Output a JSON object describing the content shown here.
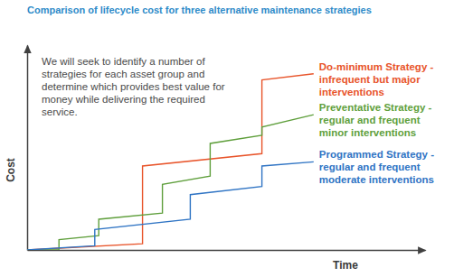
{
  "chart_data": {
    "type": "line",
    "title": "Comparison of lifecycle cost for three alternative maintenance strategies",
    "x_label": "Time",
    "y_label": "Cost",
    "annotation": "We will seek to identify a number of strategies for each asset group and determine which provides best value for money while delivering the required service.",
    "xlim": [
      0,
      100
    ],
    "ylim": [
      0,
      100
    ],
    "tick_labels": false,
    "grid": false,
    "series": [
      {
        "name": "Do-minimum Strategy - infrequent but major interventions",
        "color": "#e8542a",
        "x": [
          0,
          29,
          29,
          59,
          59,
          72
        ],
        "values": [
          0,
          3,
          41,
          47,
          83,
          86
        ]
      },
      {
        "name": "Preventative Strategy - regular and frequent minor interventions",
        "color": "#5f9f3c",
        "x": [
          0,
          8,
          8,
          18,
          18,
          34,
          34,
          46,
          46,
          59,
          59,
          72
        ],
        "values": [
          0,
          0,
          5,
          7,
          15,
          18,
          32,
          36,
          52,
          56,
          60,
          66
        ]
      },
      {
        "name": "Programmed Strategy - regular and frequent moderate interventions",
        "color": "#2f74c4",
        "x": [
          0,
          17,
          17,
          41,
          41,
          59,
          59,
          72
        ],
        "values": [
          0,
          2,
          10,
          15,
          27,
          31,
          41,
          43
        ]
      }
    ]
  }
}
